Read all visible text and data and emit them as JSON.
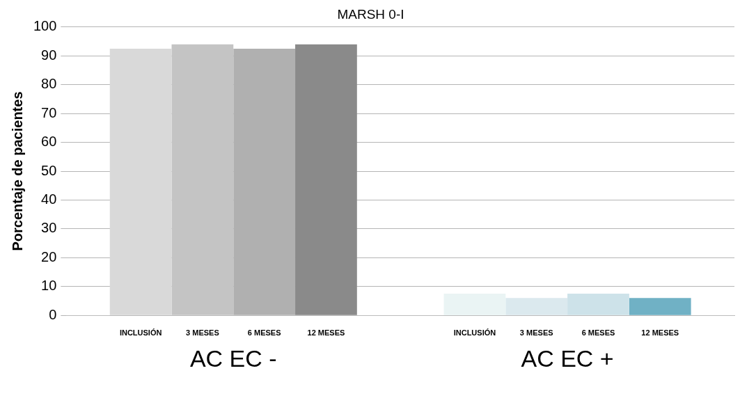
{
  "chart_data": {
    "type": "bar",
    "title": "MARSH 0-I",
    "ylabel": "Porcentaje de pacientes",
    "categories": [
      "AC EC -",
      "AC EC +"
    ],
    "series": [
      {
        "name": "INCLUSIÓN",
        "colors": [
          "#d9d9d9",
          "#eaf4f4"
        ],
        "values": [
          92.5,
          7.5
        ]
      },
      {
        "name": "3 MESES",
        "colors": [
          "#c4c4c4",
          "#dbe9ee"
        ],
        "values": [
          94,
          6
        ]
      },
      {
        "name": "6 MESES",
        "colors": [
          "#b0b0b0",
          "#cde2e9"
        ],
        "values": [
          92.5,
          7.5
        ]
      },
      {
        "name": "12 MESES",
        "colors": [
          "#8a8a8a",
          "#70b1c5"
        ],
        "values": [
          94,
          6
        ]
      }
    ],
    "ylim": [
      0,
      100
    ],
    "yticks": [
      0,
      10,
      20,
      30,
      40,
      50,
      60,
      70,
      80,
      90,
      100
    ],
    "grid": "y",
    "legend": false
  }
}
